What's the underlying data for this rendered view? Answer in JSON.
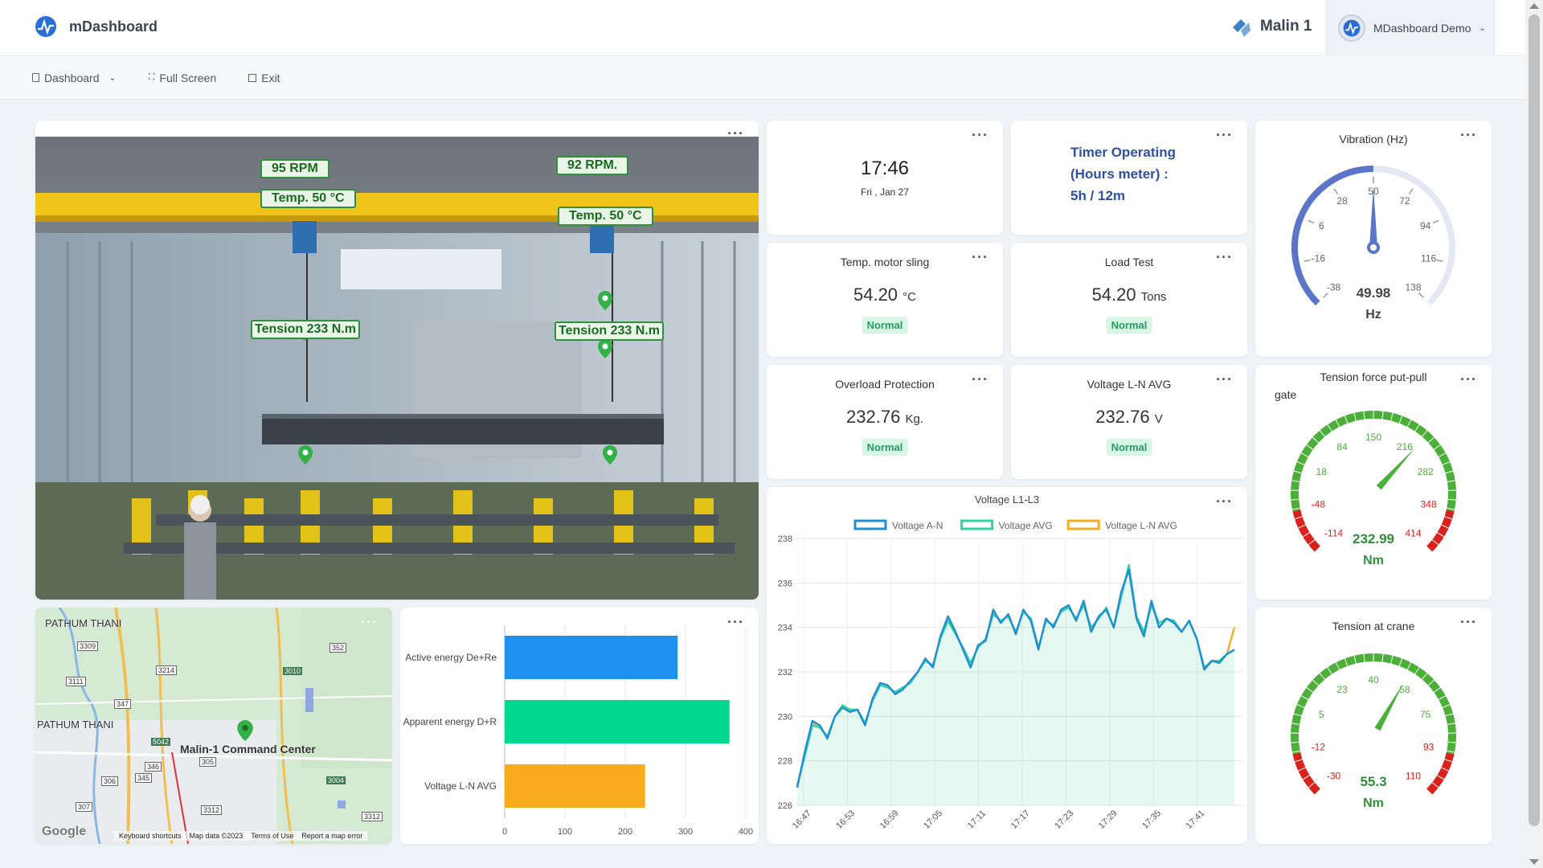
{
  "app": {
    "title": "mDashboard",
    "org": "Malin 1",
    "user": "MDashboard Demo"
  },
  "subnav": {
    "dashboard": "Dashboard",
    "fullscreen": "Full Screen",
    "exit": "Exit"
  },
  "image_panel": {
    "tags": {
      "rpm1": "95 RPM",
      "rpm2": "92 RPM.",
      "temp1": "Temp. 50 °C",
      "temp2": "Temp. 50 °C",
      "tension1": "Tension 233 N.m",
      "tension2": "Tension 233 N.m"
    }
  },
  "clock": {
    "time": "17:46",
    "date": "Fri , Jan 27"
  },
  "timer": {
    "line1": "Timer Operating",
    "line2": "(Hours meter) :",
    "line3": "5h / 12m"
  },
  "stats": [
    {
      "title": "Temp. motor sling",
      "value": "54.20",
      "unit": "°C",
      "status": "Normal"
    },
    {
      "title": "Load Test",
      "value": "54.20",
      "unit": "Tons",
      "status": "Normal"
    },
    {
      "title": "Overload Protection",
      "value": "232.76",
      "unit": "Kg.",
      "status": "Normal"
    },
    {
      "title": "Voltage L-N AVG",
      "value": "232.76",
      "unit": "V",
      "status": "Normal"
    }
  ],
  "gauges": {
    "vibration": {
      "title": "Vibration (Hz)",
      "value": 49.98,
      "display": "49.98",
      "unit": "Hz",
      "min": -38,
      "max": 138,
      "ticks": [
        "-38",
        "-16",
        "6",
        "28",
        "50",
        "72",
        "94",
        "116",
        "138"
      ],
      "color": "#5b75c8"
    },
    "tension_gate": {
      "title": "Tension force put-pull gate",
      "value": 232.99,
      "display": "232.99",
      "unit": "Nm",
      "min": -114,
      "max": 414,
      "ticks": [
        "-114",
        "-48",
        "18",
        "84",
        "150",
        "216",
        "282",
        "348",
        "414"
      ],
      "color": "#4caf3a",
      "red": "#d9221c"
    },
    "tension_crane": {
      "title": "Tension at crane",
      "value": 55.3,
      "display": "55.3",
      "unit": "Nm",
      "min": -30,
      "max": 110,
      "ticks": [
        "-30",
        "-12",
        "5",
        "23",
        "40",
        "58",
        "75",
        "93",
        "110"
      ],
      "color": "#4caf3a",
      "red": "#d9221c"
    }
  },
  "map": {
    "province1": "PATHUM THANI",
    "province2": "PATHUM THANI",
    "place": "Malin-1 Command Center",
    "roads": [
      "3309",
      "3214",
      "352",
      "3111",
      "347",
      "3010",
      "5042",
      "346",
      "305",
      "345",
      "306",
      "3004",
      "307",
      "3312",
      "3312"
    ],
    "google": "Google",
    "footer": [
      "Keyboard shortcuts",
      "Map data ©2023",
      "Terms of Use",
      "Report a map error"
    ]
  },
  "chart_data": [
    {
      "type": "bar",
      "orientation": "horizontal",
      "categories": [
        "Active energy De+Re",
        "Apparent energy D+R",
        "Voltage L-N AVG"
      ],
      "values": [
        287,
        373,
        233
      ],
      "colors": [
        "#1e90f0",
        "#00d890",
        "#f9ad1e"
      ],
      "xlim": [
        0,
        400
      ],
      "xticks": [
        "0",
        "100",
        "200",
        "300",
        "400"
      ],
      "grid": true
    },
    {
      "type": "line",
      "title": "Voltage L1-L3",
      "legend_position": "top",
      "yticks": [
        "226",
        "228",
        "230",
        "232",
        "234",
        "236",
        "238"
      ],
      "ylim": [
        226,
        238
      ],
      "xticks": [
        "16:47",
        "16:53",
        "16:59",
        "17:05",
        "17:11",
        "17:17",
        "17:23",
        "17:29",
        "17:35",
        "17:41"
      ],
      "grid": true,
      "series": [
        {
          "name": "Voltage A-N",
          "color": "#1f8fd6",
          "values": [
            226.8,
            228.4,
            229.8,
            229.6,
            229.0,
            230.0,
            230.4,
            230.2,
            230.3,
            229.6,
            230.8,
            231.5,
            231.4,
            231.0,
            231.2,
            231.6,
            232.0,
            232.6,
            232.2,
            233.6,
            234.5,
            233.8,
            233.0,
            232.2,
            233.2,
            233.4,
            234.8,
            234.2,
            234.6,
            233.7,
            234.8,
            234.3,
            233.0,
            234.4,
            234.0,
            234.8,
            235.0,
            234.3,
            235.2,
            233.8,
            234.5,
            234.8,
            234.0,
            235.6,
            236.6,
            234.4,
            233.6,
            235.2,
            234.0,
            234.4,
            234.2,
            233.8,
            234.3,
            233.5,
            232.1,
            232.5,
            232.4,
            232.8,
            233.0
          ]
        },
        {
          "name": "Voltage AVG",
          "color": "#2dd4a0",
          "values": [
            226.9,
            228.2,
            229.6,
            229.5,
            229.1,
            230.0,
            230.5,
            230.3,
            230.3,
            229.7,
            230.7,
            231.4,
            231.3,
            231.1,
            231.3,
            231.5,
            232.0,
            232.5,
            232.3,
            233.5,
            234.3,
            233.7,
            233.1,
            232.4,
            233.1,
            233.5,
            234.6,
            234.3,
            234.5,
            233.8,
            234.7,
            234.4,
            233.1,
            234.3,
            234.1,
            234.7,
            234.9,
            234.4,
            235.0,
            234.0,
            234.4,
            234.9,
            234.0,
            235.4,
            236.8,
            234.5,
            233.8,
            235.0,
            234.2,
            234.4,
            234.3,
            233.8,
            234.3,
            233.5,
            232.2,
            232.5,
            232.5,
            232.8,
            233.0
          ]
        },
        {
          "name": "Voltage L-N AVG",
          "color": "#f5ad23",
          "values": [
            226.8,
            228.3,
            229.7,
            229.6,
            229.0,
            230.0,
            230.4,
            230.2,
            230.3,
            229.6,
            230.8,
            231.5,
            231.4,
            231.0,
            231.2,
            231.6,
            232.0,
            232.6,
            232.2,
            233.6,
            234.5,
            233.8,
            233.0,
            232.2,
            233.2,
            233.4,
            234.8,
            234.2,
            234.6,
            233.7,
            234.8,
            234.3,
            233.0,
            234.4,
            234.0,
            234.8,
            235.0,
            234.3,
            235.2,
            233.8,
            234.5,
            234.8,
            234.0,
            235.6,
            236.6,
            234.4,
            233.6,
            235.2,
            234.0,
            234.4,
            234.2,
            233.8,
            234.3,
            233.5,
            232.1,
            232.5,
            232.4,
            232.8,
            234.0
          ]
        }
      ]
    }
  ]
}
